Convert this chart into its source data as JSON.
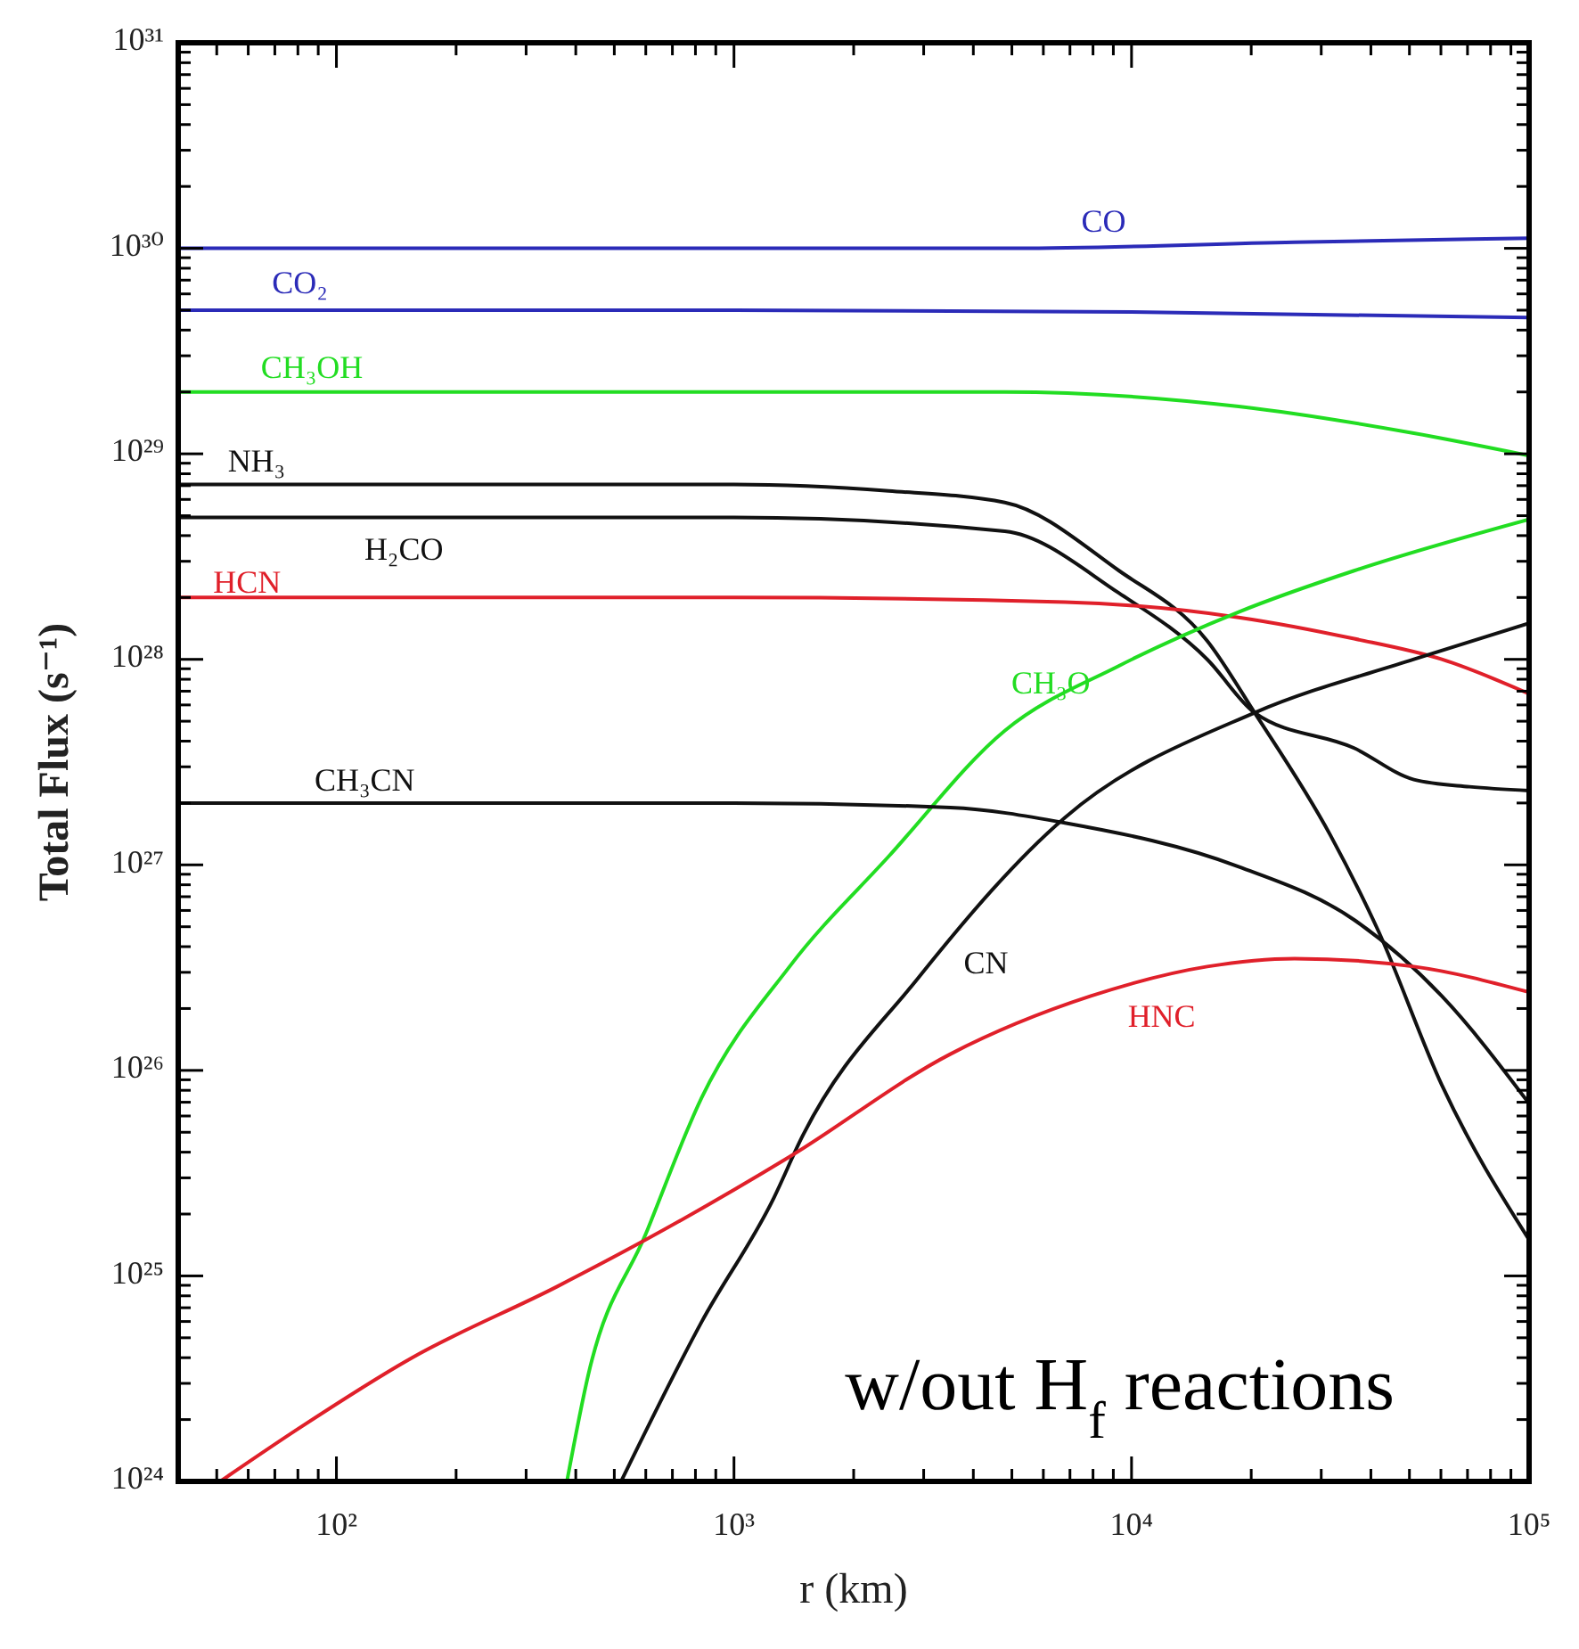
{
  "chart_data": {
    "type": "line",
    "log": "xy",
    "xlabel": "r (km)",
    "ylabel": "Total Flux (s⁻¹)",
    "annotations": [
      "w/out H$_{f}$ reactions"
    ],
    "xlim": [
      40,
      100000
    ],
    "xticks": [
      {
        "value": 50,
        "label": null
      },
      {
        "value": 60,
        "label": null
      },
      {
        "value": 70,
        "label": null
      },
      {
        "value": 80,
        "label": null
      },
      {
        "value": 90,
        "label": null
      },
      {
        "value": 100,
        "label": "10²"
      },
      {
        "value": 200,
        "label": null
      },
      {
        "value": 300,
        "label": null
      },
      {
        "value": 400,
        "label": null
      },
      {
        "value": 500,
        "label": null
      },
      {
        "value": 600,
        "label": null
      },
      {
        "value": 700,
        "label": null
      },
      {
        "value": 800,
        "label": null
      },
      {
        "value": 900,
        "label": null
      },
      {
        "value": 1000,
        "label": "10³"
      },
      {
        "value": 2000,
        "label": null
      },
      {
        "value": 3000,
        "label": null
      },
      {
        "value": 4000,
        "label": null
      },
      {
        "value": 5000,
        "label": null
      },
      {
        "value": 6000,
        "label": null
      },
      {
        "value": 7000,
        "label": null
      },
      {
        "value": 8000,
        "label": null
      },
      {
        "value": 9000,
        "label": null
      },
      {
        "value": 10000,
        "label": "10⁴"
      },
      {
        "value": 20000,
        "label": null
      },
      {
        "value": 30000,
        "label": null
      },
      {
        "value": 40000,
        "label": null
      },
      {
        "value": 50000,
        "label": null
      },
      {
        "value": 60000,
        "label": null
      },
      {
        "value": 70000,
        "label": null
      },
      {
        "value": 80000,
        "label": null
      },
      {
        "value": 90000,
        "label": null
      },
      {
        "value": 100000,
        "label": "10⁵"
      }
    ],
    "ylim": [
      1e+24,
      1e+31
    ],
    "yticks": [
      {
        "value": 1e+24,
        "label": "10²⁴"
      },
      {
        "value": 2e+24,
        "label": null
      },
      {
        "value": 3e+24,
        "label": null
      },
      {
        "value": 4e+24,
        "label": null
      },
      {
        "value": 5e+24,
        "label": null
      },
      {
        "value": 6e+24,
        "label": null
      },
      {
        "value": 7e+24,
        "label": null
      },
      {
        "value": 8e+24,
        "label": null
      },
      {
        "value": 9e+24,
        "label": null
      },
      {
        "value": 1e+25,
        "label": "10²⁵"
      },
      {
        "value": 2e+25,
        "label": null
      },
      {
        "value": 3e+25,
        "label": null
      },
      {
        "value": 4e+25,
        "label": null
      },
      {
        "value": 5e+25,
        "label": null
      },
      {
        "value": 6e+25,
        "label": null
      },
      {
        "value": 7e+25,
        "label": null
      },
      {
        "value": 8e+25,
        "label": null
      },
      {
        "value": 9e+25,
        "label": null
      },
      {
        "value": 1e+26,
        "label": "10²⁶"
      },
      {
        "value": 2e+26,
        "label": null
      },
      {
        "value": 3e+26,
        "label": null
      },
      {
        "value": 4e+26,
        "label": null
      },
      {
        "value": 5e+26,
        "label": null
      },
      {
        "value": 6e+26,
        "label": null
      },
      {
        "value": 7e+26,
        "label": null
      },
      {
        "value": 8e+26,
        "label": null
      },
      {
        "value": 9e+26,
        "label": null
      },
      {
        "value": 1e+27,
        "label": "10²⁷"
      },
      {
        "value": 2e+27,
        "label": null
      },
      {
        "value": 3e+27,
        "label": null
      },
      {
        "value": 4e+27,
        "label": null
      },
      {
        "value": 5e+27,
        "label": null
      },
      {
        "value": 6e+27,
        "label": null
      },
      {
        "value": 7e+27,
        "label": null
      },
      {
        "value": 8e+27,
        "label": null
      },
      {
        "value": 9e+27,
        "label": null
      },
      {
        "value": 1e+28,
        "label": "10²⁸"
      },
      {
        "value": 2e+28,
        "label": null
      },
      {
        "value": 3e+28,
        "label": null
      },
      {
        "value": 4e+28,
        "label": null
      },
      {
        "value": 5e+28,
        "label": null
      },
      {
        "value": 6e+28,
        "label": null
      },
      {
        "value": 7e+28,
        "label": null
      },
      {
        "value": 8e+28,
        "label": null
      },
      {
        "value": 9e+28,
        "label": null
      },
      {
        "value": 1e+29,
        "label": "10²⁹"
      },
      {
        "value": 2e+29,
        "label": null
      },
      {
        "value": 3e+29,
        "label": null
      },
      {
        "value": 4e+29,
        "label": null
      },
      {
        "value": 5e+29,
        "label": null
      },
      {
        "value": 6e+29,
        "label": null
      },
      {
        "value": 7e+29,
        "label": null
      },
      {
        "value": 8e+29,
        "label": null
      },
      {
        "value": 9e+29,
        "label": null
      },
      {
        "value": 1e+30,
        "label": "10³⁰"
      },
      {
        "value": 2e+30,
        "label": null
      },
      {
        "value": 3e+30,
        "label": null
      },
      {
        "value": 4e+30,
        "label": null
      },
      {
        "value": 5e+30,
        "label": null
      },
      {
        "value": 6e+30,
        "label": null
      },
      {
        "value": 7e+30,
        "label": null
      },
      {
        "value": 8e+30,
        "label": null
      },
      {
        "value": 9e+30,
        "label": null
      },
      {
        "value": 1e+31,
        "label": "10³¹"
      }
    ],
    "series": [
      {
        "name": "CO",
        "color": "#2b2bb8",
        "x": [
          40,
          1000,
          5100,
          25700,
          100000
        ],
        "values": [
          1e+30,
          1e+30,
          1e+30,
          1.07e+30,
          1.12e+30
        ]
      },
      {
        "name": "CO₂",
        "color": "#2b2bb8",
        "x": [
          40,
          1000,
          10000,
          100000
        ],
        "values": [
          5e+29,
          5e+29,
          4.9e+29,
          4.6e+29
        ]
      },
      {
        "name": "CH₃OH",
        "color": "#22dd22",
        "x": [
          40,
          1000,
          4800,
          18600,
          51300,
          100000
        ],
        "values": [
          2e+29,
          2e+29,
          2e+29,
          1.7e+29,
          1.26e+29,
          9.8e+28
        ]
      },
      {
        "name": "NH₃",
        "color": "#111111",
        "x": [
          40,
          1000,
          2450,
          4800,
          9300,
          15500,
          20400,
          31600,
          41700,
          60300,
          100000
        ],
        "values": [
          7.1e+28,
          7.1e+28,
          6.6e+28,
          5.8e+28,
          2.7e+28,
          1.23e+28,
          5.5e+27,
          1.4e+27,
          4.8e+26,
          8.5e+25,
          1.5e+25
        ]
      },
      {
        "name": "H₂CO",
        "color": "#111111",
        "x": [
          40,
          1000,
          4800,
          9300,
          15500,
          20400,
          36300,
          51300,
          70800,
          100000
        ],
        "values": [
          4.9e+28,
          4.9e+28,
          4.2e+28,
          2.1e+28,
          1e+28,
          5.5e+27,
          3.7e+27,
          2.6e+27,
          2.4e+27,
          2.3e+27
        ]
      },
      {
        "name": "HCN",
        "color": "#e0202a",
        "x": [
          40,
          1000,
          6800,
          18600,
          36300,
          60300,
          100000
        ],
        "values": [
          2e+28,
          2e+28,
          1.9e+28,
          1.6e+28,
          1.26e+28,
          1e+28,
          6.8e+27
        ]
      },
      {
        "name": "CH₃O",
        "color": "#22dd22",
        "x": [
          380,
          430,
          600,
          830,
          1380,
          2450,
          4800,
          9300,
          18600,
          36300,
          100000
        ],
        "values": [
          1e+24,
          3.3e+24,
          1.6e+25,
          7.4e+25,
          3.2e+26,
          1.1e+27,
          4.5e+27,
          9.3e+27,
          1.7e+28,
          2.7e+28,
          4.8e+28
        ]
      },
      {
        "name": "CH₃CN",
        "color": "#111111",
        "x": [
          40,
          1000,
          3500,
          6800,
          18600,
          36300,
          60300,
          100000
        ],
        "values": [
          2e+27,
          2e+27,
          1.9e+27,
          1.6e+27,
          9.8e+26,
          5.4e+26,
          2.3e+26,
          6.9e+25
        ]
      },
      {
        "name": "CN",
        "color": "#111111",
        "x": [
          520,
          830,
          1260,
          1480,
          2900,
          6800,
          20400,
          51300,
          100000
        ],
        "values": [
          1e+24,
          6e+24,
          2.4e+25,
          4.7e+25,
          2.8e+26,
          1.7e+27,
          5.5e+27,
          1e+28,
          1.5e+28
        ]
      },
      {
        "name": "HNC",
        "color": "#e0202a",
        "x": [
          51,
          80,
          155,
          360,
          600,
          1380,
          3500,
          7900,
          15500,
          25700,
          51300,
          100000
        ],
        "values": [
          1e+24,
          1.8e+24,
          4e+24,
          8.9e+24,
          1.5e+25,
          3.8e+25,
          1.2e+26,
          2.3e+26,
          3.2e+26,
          3.5e+26,
          3.2e+26,
          2.4e+26
        ]
      }
    ]
  }
}
